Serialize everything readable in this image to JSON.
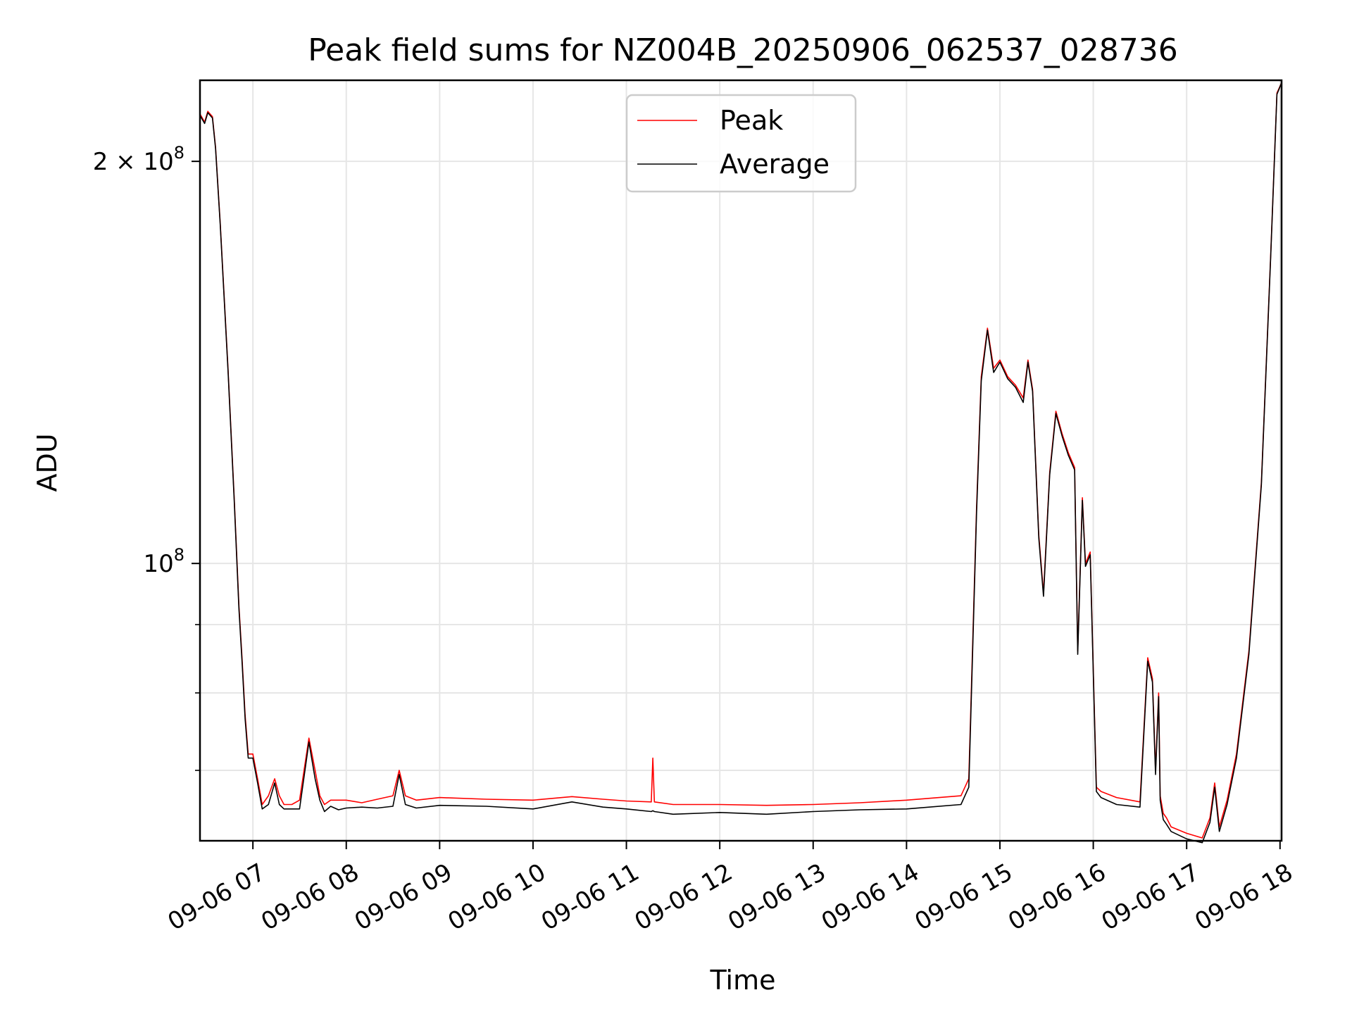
{
  "chart_data": {
    "type": "line",
    "title": "Peak field sums for NZ004B_20250906_062537_028736",
    "xlabel": "Time",
    "ylabel": "ADU",
    "yscale": "log",
    "grid": true,
    "legend_position": "top-center",
    "xlim": [
      "2025-09-06 06:26",
      "2025-09-06 18:01"
    ],
    "ylim": [
      62000000.0,
      230000000.0
    ],
    "x_ticks": [
      {
        "value": "2025-09-06 07:00",
        "label": "09-06 07"
      },
      {
        "value": "2025-09-06 08:00",
        "label": "09-06 08"
      },
      {
        "value": "2025-09-06 09:00",
        "label": "09-06 09"
      },
      {
        "value": "2025-09-06 10:00",
        "label": "09-06 10"
      },
      {
        "value": "2025-09-06 11:00",
        "label": "09-06 11"
      },
      {
        "value": "2025-09-06 12:00",
        "label": "09-06 12"
      },
      {
        "value": "2025-09-06 13:00",
        "label": "09-06 13"
      },
      {
        "value": "2025-09-06 14:00",
        "label": "09-06 14"
      },
      {
        "value": "2025-09-06 15:00",
        "label": "09-06 15"
      },
      {
        "value": "2025-09-06 16:00",
        "label": "09-06 16"
      },
      {
        "value": "2025-09-06 17:00",
        "label": "09-06 17"
      },
      {
        "value": "2025-09-06 18:00",
        "label": "09-06 18"
      }
    ],
    "y_major_ticks": [
      {
        "value": 100000000,
        "base": "10",
        "exp": "8",
        "coef": ""
      },
      {
        "value": 200000000,
        "base": "10",
        "exp": "8",
        "coef": "2 × "
      }
    ],
    "y_minor_ticks": [
      70000000,
      80000000,
      90000000
    ],
    "series": [
      {
        "name": "Peak",
        "color": "#ff0000",
        "x": [
          "2025-09-06 06:26",
          "2025-09-06 06:29",
          "2025-09-06 06:31",
          "2025-09-06 06:34",
          "2025-09-06 06:36",
          "2025-09-06 06:39",
          "2025-09-06 06:44",
          "2025-09-06 06:48",
          "2025-09-06 06:51",
          "2025-09-06 06:53",
          "2025-09-06 06:55",
          "2025-09-06 06:57",
          "2025-09-06 07:00",
          "2025-09-06 07:03",
          "2025-09-06 07:06",
          "2025-09-06 07:10",
          "2025-09-06 07:14",
          "2025-09-06 07:17",
          "2025-09-06 07:20",
          "2025-09-06 07:25",
          "2025-09-06 07:30",
          "2025-09-06 07:36",
          "2025-09-06 07:40",
          "2025-09-06 07:43",
          "2025-09-06 07:46",
          "2025-09-06 07:50",
          "2025-09-06 07:55",
          "2025-09-06 08:00",
          "2025-09-06 08:10",
          "2025-09-06 08:20",
          "2025-09-06 08:30",
          "2025-09-06 08:34",
          "2025-09-06 08:38",
          "2025-09-06 08:45",
          "2025-09-06 09:00",
          "2025-09-06 09:30",
          "2025-09-06 10:00",
          "2025-09-06 10:25",
          "2025-09-06 10:45",
          "2025-09-06 11:00",
          "2025-09-06 11:16",
          "2025-09-06 11:17",
          "2025-09-06 11:18",
          "2025-09-06 11:30",
          "2025-09-06 12:00",
          "2025-09-06 12:30",
          "2025-09-06 13:00",
          "2025-09-06 13:30",
          "2025-09-06 14:00",
          "2025-09-06 14:35",
          "2025-09-06 14:40",
          "2025-09-06 14:45",
          "2025-09-06 14:48",
          "2025-09-06 14:52",
          "2025-09-06 14:56",
          "2025-09-06 15:00",
          "2025-09-06 15:05",
          "2025-09-06 15:10",
          "2025-09-06 15:15",
          "2025-09-06 15:18",
          "2025-09-06 15:21",
          "2025-09-06 15:25",
          "2025-09-06 15:28",
          "2025-09-06 15:32",
          "2025-09-06 15:36",
          "2025-09-06 15:40",
          "2025-09-06 15:44",
          "2025-09-06 15:48",
          "2025-09-06 15:50",
          "2025-09-06 15:53",
          "2025-09-06 15:55",
          "2025-09-06 15:58",
          "2025-09-06 16:02",
          "2025-09-06 16:05",
          "2025-09-06 16:15",
          "2025-09-06 16:30",
          "2025-09-06 16:35",
          "2025-09-06 16:38",
          "2025-09-06 16:40",
          "2025-09-06 16:42",
          "2025-09-06 16:43",
          "2025-09-06 16:45",
          "2025-09-06 16:47",
          "2025-09-06 16:50",
          "2025-09-06 17:00",
          "2025-09-06 17:10",
          "2025-09-06 17:15",
          "2025-09-06 17:18",
          "2025-09-06 17:21",
          "2025-09-06 17:26",
          "2025-09-06 17:32",
          "2025-09-06 17:40",
          "2025-09-06 17:48",
          "2025-09-06 17:54",
          "2025-09-06 17:58",
          "2025-09-06 18:01"
        ],
        "y": [
          217000000,
          214000000,
          218000000,
          216000000,
          205000000,
          180000000,
          140000000,
          112000000,
          93000000,
          85000000,
          77000000,
          72000000,
          72000000,
          69000000,
          66000000,
          67000000,
          69000000,
          67000000,
          66000000,
          66000000,
          66500000,
          74000000,
          70000000,
          67000000,
          66000000,
          66500000,
          66500000,
          66500000,
          66200000,
          66600000,
          67000000,
          70000000,
          67000000,
          66500000,
          66800000,
          66600000,
          66500000,
          66900000,
          66600000,
          66400000,
          66300000,
          71500000,
          66300000,
          66000000,
          66000000,
          65900000,
          66000000,
          66200000,
          66500000,
          67000000,
          69000000,
          110000000,
          138000000,
          150000000,
          140000000,
          142000000,
          138000000,
          136000000,
          133000000,
          142000000,
          135000000,
          105000000,
          95000000,
          117000000,
          130000000,
          125000000,
          121000000,
          118000000,
          86000000,
          112000000,
          100000000,
          102000000,
          68000000,
          67500000,
          66800000,
          66300000,
          85000000,
          82000000,
          70000000,
          80000000,
          67000000,
          65000000,
          64500000,
          63500000,
          62800000,
          62300000,
          64500000,
          68500000,
          63500000,
          66500000,
          72000000,
          86000000,
          115000000,
          170000000,
          225000000,
          229000000
        ]
      },
      {
        "name": "Average",
        "color": "#000000",
        "x": [
          "2025-09-06 06:26",
          "2025-09-06 06:29",
          "2025-09-06 06:31",
          "2025-09-06 06:34",
          "2025-09-06 06:36",
          "2025-09-06 06:39",
          "2025-09-06 06:44",
          "2025-09-06 06:48",
          "2025-09-06 06:51",
          "2025-09-06 06:53",
          "2025-09-06 06:55",
          "2025-09-06 06:57",
          "2025-09-06 07:00",
          "2025-09-06 07:03",
          "2025-09-06 07:06",
          "2025-09-06 07:10",
          "2025-09-06 07:14",
          "2025-09-06 07:17",
          "2025-09-06 07:20",
          "2025-09-06 07:25",
          "2025-09-06 07:30",
          "2025-09-06 07:36",
          "2025-09-06 07:40",
          "2025-09-06 07:43",
          "2025-09-06 07:46",
          "2025-09-06 07:50",
          "2025-09-06 07:55",
          "2025-09-06 08:00",
          "2025-09-06 08:10",
          "2025-09-06 08:20",
          "2025-09-06 08:30",
          "2025-09-06 08:34",
          "2025-09-06 08:38",
          "2025-09-06 08:45",
          "2025-09-06 09:00",
          "2025-09-06 09:30",
          "2025-09-06 10:00",
          "2025-09-06 10:25",
          "2025-09-06 10:45",
          "2025-09-06 11:00",
          "2025-09-06 11:16",
          "2025-09-06 11:17",
          "2025-09-06 11:18",
          "2025-09-06 11:30",
          "2025-09-06 12:00",
          "2025-09-06 12:30",
          "2025-09-06 13:00",
          "2025-09-06 13:30",
          "2025-09-06 14:00",
          "2025-09-06 14:35",
          "2025-09-06 14:40",
          "2025-09-06 14:45",
          "2025-09-06 14:48",
          "2025-09-06 14:52",
          "2025-09-06 14:56",
          "2025-09-06 15:00",
          "2025-09-06 15:05",
          "2025-09-06 15:10",
          "2025-09-06 15:15",
          "2025-09-06 15:18",
          "2025-09-06 15:21",
          "2025-09-06 15:25",
          "2025-09-06 15:28",
          "2025-09-06 15:32",
          "2025-09-06 15:36",
          "2025-09-06 15:40",
          "2025-09-06 15:44",
          "2025-09-06 15:48",
          "2025-09-06 15:50",
          "2025-09-06 15:53",
          "2025-09-06 15:55",
          "2025-09-06 15:58",
          "2025-09-06 16:02",
          "2025-09-06 16:05",
          "2025-09-06 16:15",
          "2025-09-06 16:30",
          "2025-09-06 16:35",
          "2025-09-06 16:38",
          "2025-09-06 16:40",
          "2025-09-06 16:42",
          "2025-09-06 16:43",
          "2025-09-06 16:45",
          "2025-09-06 16:47",
          "2025-09-06 16:50",
          "2025-09-06 17:00",
          "2025-09-06 17:10",
          "2025-09-06 17:15",
          "2025-09-06 17:18",
          "2025-09-06 17:21",
          "2025-09-06 17:26",
          "2025-09-06 17:32",
          "2025-09-06 17:40",
          "2025-09-06 17:48",
          "2025-09-06 17:54",
          "2025-09-06 17:58",
          "2025-09-06 18:01"
        ],
        "y": [
          216500000,
          213500000,
          217500000,
          215500000,
          204500000,
          179500000,
          139500000,
          111500000,
          92500000,
          84500000,
          76500000,
          71500000,
          71500000,
          68500000,
          65500000,
          66000000,
          68500000,
          66000000,
          65500000,
          65500000,
          65500000,
          73500000,
          69000000,
          66500000,
          65200000,
          65800000,
          65400000,
          65600000,
          65700000,
          65600000,
          65800000,
          69500000,
          66000000,
          65600000,
          65900000,
          65800000,
          65500000,
          66300000,
          65700000,
          65500000,
          65200000,
          65300000,
          65200000,
          64900000,
          65100000,
          64900000,
          65200000,
          65400000,
          65500000,
          66000000,
          68000000,
          109000000,
          137000000,
          149500000,
          139000000,
          141500000,
          137500000,
          135500000,
          132000000,
          141500000,
          134500000,
          104500000,
          94500000,
          116500000,
          129500000,
          124500000,
          120500000,
          117500000,
          85500000,
          111500000,
          99500000,
          101500000,
          67500000,
          66800000,
          66000000,
          65700000,
          84500000,
          81500000,
          69500000,
          79500000,
          66500000,
          64300000,
          63800000,
          63000000,
          62200000,
          61800000,
          64000000,
          68000000,
          63000000,
          66000000,
          71500000,
          85500000,
          114500000,
          169500000,
          224500000,
          229000000
        ]
      }
    ]
  },
  "legend": {
    "items": [
      {
        "label": "Peak",
        "color": "#ff0000"
      },
      {
        "label": "Average",
        "color": "#000000"
      }
    ]
  }
}
